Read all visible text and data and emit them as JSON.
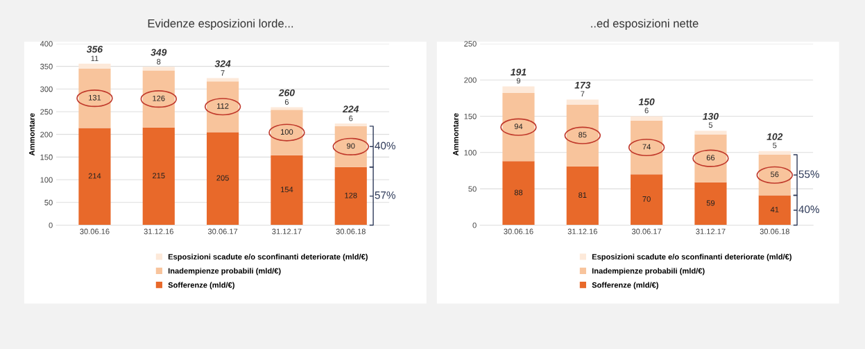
{
  "chart_data": [
    {
      "type": "bar",
      "title": "Evidenze esposizioni lorde...",
      "ylabel": "Ammontare",
      "stacked": true,
      "categories": [
        "30.06.16",
        "31.12.16",
        "30.06.17",
        "31.12.17",
        "30.06.18"
      ],
      "series": [
        {
          "name": "Sofferenze (mld/€)",
          "color": "#e8692a",
          "values": [
            214,
            215,
            205,
            154,
            128
          ]
        },
        {
          "name": "Inadempienze probabili (mld/€)",
          "color": "#f8c49c",
          "values": [
            131,
            126,
            112,
            100,
            90
          ]
        },
        {
          "name": "Esposizioni scadute e/o sconfinanti deteriorate (mld/€)",
          "color": "#fde9d9",
          "values": [
            11,
            8,
            7,
            6,
            6
          ]
        }
      ],
      "totals": [
        "356",
        "349",
        "324",
        "260",
        "224"
      ],
      "data_labels": true,
      "ylim": [
        0,
        400
      ],
      "yticks": [
        0,
        50,
        100,
        150,
        200,
        250,
        300,
        350,
        400
      ],
      "grid": "y",
      "legend": "bottom",
      "annotations": [
        "40%",
        "57%"
      ]
    },
    {
      "type": "bar",
      "title": "..ed esposizioni nette",
      "ylabel": "Ammontare",
      "stacked": true,
      "categories": [
        "30.06.16",
        "31.12.16",
        "30.06.17",
        "31.12.17",
        "30.06.18"
      ],
      "series": [
        {
          "name": "Sofferenze (mld/€)",
          "color": "#e8692a",
          "values": [
            88,
            81,
            70,
            59,
            41
          ]
        },
        {
          "name": "Inadempienze probabili (mld/€)",
          "color": "#f8c49c",
          "values": [
            94,
            85,
            74,
            66,
            56
          ]
        },
        {
          "name": "Esposizioni scadute e/o sconfinanti deteriorate (mld/€)",
          "color": "#fde9d9",
          "values": [
            9,
            7,
            6,
            5,
            5
          ]
        }
      ],
      "totals": [
        "191",
        "173",
        "150",
        "130",
        "102"
      ],
      "data_labels": true,
      "ylim": [
        0,
        250
      ],
      "yticks": [
        0,
        50,
        100,
        150,
        200,
        250
      ],
      "grid": "y",
      "legend": "bottom",
      "annotations": [
        "55%",
        "40%"
      ]
    }
  ]
}
